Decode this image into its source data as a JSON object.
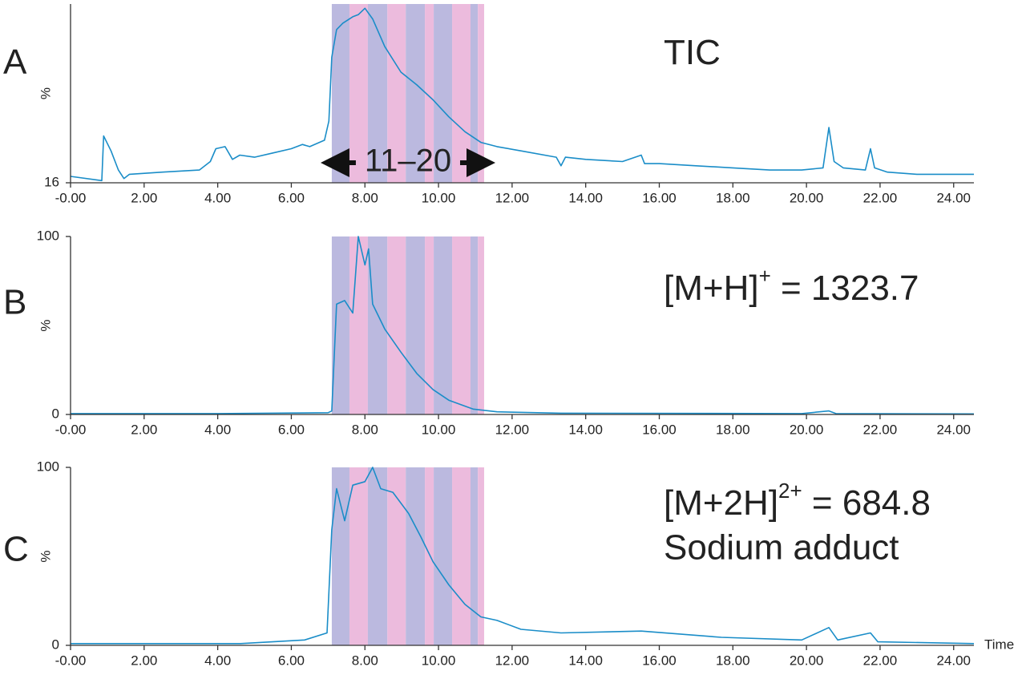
{
  "chart_data": [
    {
      "type": "line",
      "panel": "A",
      "y_label": "%",
      "annotation": {
        "text": "TIC"
      },
      "fraction_label": "11–20",
      "bands": {
        "edges": [
          7.1,
          7.58,
          8.08,
          8.61,
          9.11,
          9.63,
          9.87,
          10.37,
          10.87,
          11.07,
          11.24
        ],
        "colors": [
          "#bbb9df",
          "#ecbbdd"
        ]
      },
      "color": "#1a8dc8",
      "x": [
        0,
        0.85,
        0.9,
        1.1,
        1.3,
        1.45,
        1.6,
        2.5,
        3.5,
        3.8,
        3.95,
        4.2,
        4.4,
        4.6,
        5.0,
        5.5,
        6.0,
        6.3,
        6.5,
        6.9,
        7.02,
        7.1,
        7.23,
        7.4,
        7.67,
        7.82,
        8.0,
        8.21,
        8.54,
        8.98,
        9.41,
        9.85,
        10.28,
        10.72,
        11.15,
        11.59,
        12.24,
        13.2,
        13.33,
        13.45,
        14,
        15,
        15.51,
        15.6,
        16,
        17,
        18,
        19,
        19.87,
        20.45,
        20.61,
        20.75,
        21,
        21.6,
        21.74,
        21.85,
        22.2,
        23,
        24,
        24.55
      ],
      "values": [
        19,
        17,
        38,
        31,
        22,
        18,
        20,
        21,
        22,
        26,
        32,
        33,
        27,
        29,
        28,
        30,
        32,
        34,
        33,
        36,
        45,
        75,
        88,
        91,
        94,
        95,
        98,
        93,
        80,
        68,
        62,
        55,
        47,
        40,
        35,
        33,
        31,
        28,
        24,
        28,
        27,
        26,
        29,
        25,
        25,
        24,
        23,
        22,
        22,
        23,
        42,
        26,
        23,
        22,
        32,
        23,
        21,
        20,
        20,
        20
      ],
      "xlim": [
        0,
        24.55
      ],
      "ylim": [
        16,
        100
      ],
      "xticks": [
        {
          "value": 0,
          "label": "-0.00"
        },
        {
          "value": 2,
          "label": "2.00"
        },
        {
          "value": 4,
          "label": "4.00"
        },
        {
          "value": 6,
          "label": "6.00"
        },
        {
          "value": 8,
          "label": "8.00"
        },
        {
          "value": 10,
          "label": "10.00"
        },
        {
          "value": 12,
          "label": "12.00"
        },
        {
          "value": 14,
          "label": "14.00"
        },
        {
          "value": 16,
          "label": "16.00"
        },
        {
          "value": 18,
          "label": "18.00"
        },
        {
          "value": 20,
          "label": "20.00"
        },
        {
          "value": 22,
          "label": "22.00"
        },
        {
          "value": 24,
          "label": "24.00"
        }
      ],
      "yticks": [
        16
      ]
    },
    {
      "type": "line",
      "panel": "B",
      "y_label": "%",
      "annotation": {
        "text": "[M+H]",
        "sup": "+",
        "rest": " = 1323.7"
      },
      "bands": {
        "edges": [
          7.1,
          7.58,
          8.08,
          8.61,
          9.11,
          9.63,
          9.87,
          10.37,
          10.87,
          11.07,
          11.24
        ],
        "colors": [
          "#bbb9df",
          "#ecbbdd"
        ]
      },
      "color": "#1a8dc8",
      "x": [
        0,
        4,
        7.0,
        7.1,
        7.23,
        7.45,
        7.67,
        7.82,
        8.0,
        8.1,
        8.21,
        8.54,
        8.98,
        9.41,
        9.85,
        10.28,
        10.94,
        11.59,
        13.33,
        19.87,
        20.61,
        20.8,
        24.55
      ],
      "values": [
        0.5,
        0.5,
        1,
        2,
        62,
        64,
        57,
        100,
        84,
        93,
        62,
        48,
        35,
        23,
        14,
        8,
        3,
        1.5,
        0.7,
        0.5,
        2,
        0.5,
        0.3
      ],
      "xlim": [
        0,
        24.55
      ],
      "ylim": [
        0,
        100
      ],
      "xticks": [
        {
          "value": 0,
          "label": "-0.00"
        },
        {
          "value": 2,
          "label": "2.00"
        },
        {
          "value": 4,
          "label": "4.00"
        },
        {
          "value": 6,
          "label": "6.00"
        },
        {
          "value": 8,
          "label": "8.00"
        },
        {
          "value": 10,
          "label": "10.00"
        },
        {
          "value": 12,
          "label": "12.00"
        },
        {
          "value": 14,
          "label": "14.00"
        },
        {
          "value": 16,
          "label": "16.00"
        },
        {
          "value": 18,
          "label": "18.00"
        },
        {
          "value": 20,
          "label": "20.00"
        },
        {
          "value": 22,
          "label": "22.00"
        },
        {
          "value": 24,
          "label": "24.00"
        }
      ],
      "yticks": [
        0,
        100
      ]
    },
    {
      "type": "line",
      "panel": "C",
      "y_label": "%",
      "annotation": {
        "text": "[M+2H]",
        "sup": "2+",
        "rest": " = 684.8",
        "line2": "Sodium adduct"
      },
      "x_label": "Time",
      "bands": {
        "edges": [
          7.1,
          7.58,
          8.08,
          8.61,
          9.11,
          9.63,
          9.87,
          10.37,
          10.87,
          11.07,
          11.24
        ],
        "colors": [
          "#bbb9df",
          "#ecbbdd"
        ]
      },
      "color": "#1a8dc8",
      "x": [
        0,
        4.62,
        6.36,
        6.97,
        7.1,
        7.23,
        7.45,
        7.67,
        8.0,
        8.21,
        8.43,
        8.76,
        9.19,
        9.52,
        9.85,
        10.28,
        10.72,
        11.15,
        11.59,
        12.24,
        13.33,
        15.51,
        17.69,
        19.87,
        20.61,
        20.85,
        21.74,
        21.94,
        24.55
      ],
      "values": [
        1,
        1,
        3,
        7,
        65,
        88,
        70,
        90,
        92,
        100,
        88,
        86,
        74,
        61,
        47,
        34,
        23,
        16,
        14,
        9,
        7,
        8,
        4.5,
        3,
        10,
        3,
        7,
        2,
        1
      ],
      "xlim": [
        0,
        24.55
      ],
      "ylim": [
        0,
        100
      ],
      "xticks": [
        {
          "value": 0,
          "label": "-0.00"
        },
        {
          "value": 2,
          "label": "2.00"
        },
        {
          "value": 4,
          "label": "4.00"
        },
        {
          "value": 6,
          "label": "6.00"
        },
        {
          "value": 8,
          "label": "8.00"
        },
        {
          "value": 10,
          "label": "10.00"
        },
        {
          "value": 12,
          "label": "12.00"
        },
        {
          "value": 14,
          "label": "14.00"
        },
        {
          "value": 16,
          "label": "16.00"
        },
        {
          "value": 18,
          "label": "18.00"
        },
        {
          "value": 20,
          "label": "20.00"
        },
        {
          "value": 22,
          "label": "22.00"
        },
        {
          "value": 24,
          "label": "24.00"
        }
      ],
      "yticks": [
        0,
        100
      ]
    }
  ]
}
